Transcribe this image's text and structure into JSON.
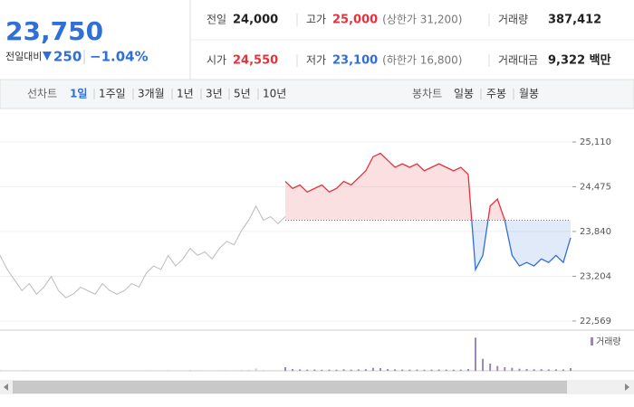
{
  "quote": {
    "price": "23,750",
    "change_label": "전일대비",
    "change": "250",
    "change_pct": "−1.04%"
  },
  "stats": [
    {
      "label": "전일",
      "value": "24,000"
    },
    {
      "label": "고가",
      "value": "25,000",
      "note": "(상한가 31,200)"
    },
    {
      "label": "거래량",
      "value": "387,412"
    },
    {
      "label": "시가",
      "value": "24,550"
    },
    {
      "label": "저가",
      "value": "23,100",
      "note": "(하한가 16,800)"
    },
    {
      "label": "거래대금",
      "value": "9,322 백만"
    }
  ],
  "tabs": {
    "line_label": "선차트",
    "line_items": [
      "1일",
      "1주일",
      "3개월",
      "1년",
      "3년",
      "5년",
      "10년"
    ],
    "candle_label": "봉차트",
    "candle_items": [
      "일봉",
      "주봉",
      "월봉"
    ]
  },
  "chart_data": {
    "type": "line",
    "reference": 24000,
    "ylim": [
      22440,
      25520
    ],
    "yticks": [
      {
        "value": 25110,
        "label": "25,110"
      },
      {
        "value": 24475,
        "label": "24,475"
      },
      {
        "value": 23840,
        "label": "23,840"
      },
      {
        "value": 23204,
        "label": "23,204"
      },
      {
        "value": 22569,
        "label": "22,569"
      }
    ],
    "grid": true,
    "series": [
      {
        "color": "#bbbbbb",
        "values": [
          23500,
          23300,
          23150,
          23000,
          23100,
          22950,
          23050,
          23200,
          23000,
          22900,
          22950,
          23050,
          23000,
          22950,
          23100,
          23000,
          22950,
          23000,
          23100,
          23050,
          23250,
          23350,
          23300,
          23500,
          23350,
          23450,
          23600,
          23500,
          23550,
          23450,
          23600,
          23700,
          23650,
          23850,
          24000,
          24200,
          24000,
          24050,
          23950,
          24050
        ]
      },
      {
        "color": "#e5323c",
        "color_below": "#2f6fd8",
        "values": [
          24550,
          24450,
          24500,
          24400,
          24450,
          24500,
          24400,
          24450,
          24550,
          24500,
          24600,
          24700,
          24900,
          24950,
          24850,
          24750,
          24800,
          24750,
          24800,
          24700,
          24750,
          24800,
          24750,
          24700,
          24750,
          24650,
          23300,
          23500,
          24200,
          24300,
          24000,
          23500,
          23350,
          23400,
          23350,
          23450,
          23400,
          23500,
          23400,
          23750
        ]
      }
    ],
    "volume": {
      "name": "거래량",
      "color": "#9b86b8",
      "vlim": [
        0,
        60000
      ],
      "prev": [
        1200,
        800,
        600,
        900,
        700,
        500,
        600,
        800,
        500,
        400,
        600,
        500,
        700,
        400,
        500,
        600,
        500,
        400,
        700,
        500,
        900,
        800,
        600,
        1000,
        700,
        800,
        1200,
        900,
        800,
        700,
        900,
        1100,
        900,
        1300,
        1500,
        4000,
        1200,
        1000,
        900,
        1100
      ],
      "today": [
        6000,
        3000,
        2500,
        2000,
        2200,
        1800,
        2000,
        1900,
        2500,
        2000,
        2400,
        2800,
        5000,
        4500,
        3000,
        2500,
        2200,
        2000,
        2100,
        1800,
        2000,
        2200,
        2000,
        1900,
        2100,
        3000,
        55000,
        20000,
        12000,
        8000,
        6000,
        5000,
        3500,
        3000,
        2600,
        2800,
        2400,
        2500,
        2300,
        4500
      ]
    }
  }
}
